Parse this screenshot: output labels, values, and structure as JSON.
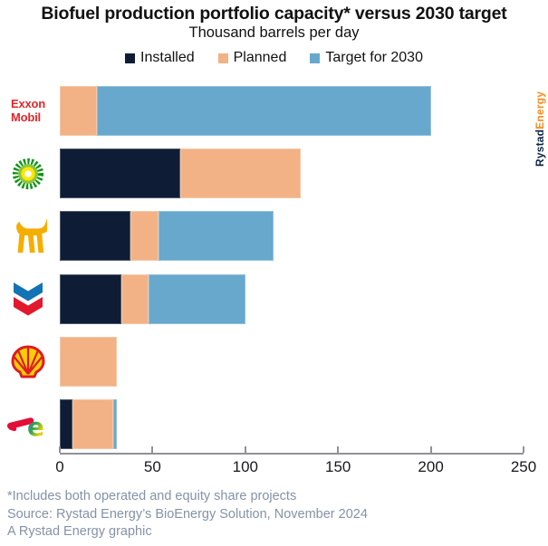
{
  "title": "Biofuel production portfolio capacity* versus 2030 target",
  "subtitle": "Thousand barrels per day",
  "brand": {
    "name_dark": "Rystad",
    "name_accent": "Energy"
  },
  "legend": [
    {
      "label": "Installed",
      "color": "#0e1d35"
    },
    {
      "label": "Planned",
      "color": "#f2b286"
    },
    {
      "label": "Target for 2030",
      "color": "#67a8cc"
    }
  ],
  "logos": {
    "exxon_line1": "Exxon",
    "exxon_line2": "Mobil"
  },
  "chart_data": {
    "type": "bar",
    "orientation": "horizontal",
    "unit": "thousand barrels per day",
    "categories": [
      "ExxonMobil",
      "bp",
      "Eni",
      "Chevron",
      "Shell",
      "TotalEnergies"
    ],
    "series": [
      {
        "name": "Installed",
        "color": "#0e1d35",
        "values": [
          0,
          65,
          38,
          33,
          0,
          7
        ]
      },
      {
        "name": "Planned",
        "color": "#f2b286",
        "values": [
          20,
          65,
          15,
          15,
          31,
          22
        ]
      },
      {
        "name": "Target for 2030",
        "color": "#67a8cc",
        "values": [
          180,
          0,
          62,
          52,
          0,
          2
        ]
      }
    ],
    "totals": [
      200,
      130,
      115,
      100,
      31,
      31
    ],
    "x_axis": {
      "min": 0,
      "max": 250,
      "ticks": [
        0,
        50,
        100,
        150,
        200,
        250
      ]
    },
    "legend_position": "top",
    "grid": false
  },
  "footnotes": [
    "*Includes both operated and equity share projects",
    "Source: Rystad Energy’s BioEnergy Solution, November 2024",
    "A Rystad Energy graphic"
  ]
}
